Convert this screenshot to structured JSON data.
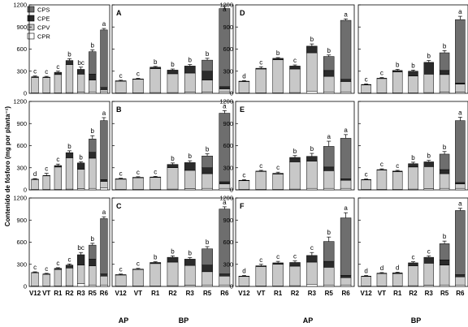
{
  "chart_data": {
    "type": "bar",
    "stacked": true,
    "ylabel": "Contenido de fósforo (mg por planta⁻¹)",
    "ylim": [
      0,
      1200
    ],
    "yticks": [
      0,
      300,
      600,
      900,
      1200
    ],
    "categories": [
      "V12",
      "VT",
      "R1",
      "R2",
      "R3",
      "R5",
      "R6"
    ],
    "group_labels": {
      "AP": "AP",
      "BP": "BP"
    },
    "legend": [
      {
        "key": "CPS",
        "label": "CPS",
        "color": "#6e6e6e"
      },
      {
        "key": "CPE",
        "label": "CPE",
        "color": "#2b2b2b"
      },
      {
        "key": "CPV",
        "label": "CPV",
        "color": "#c8c8c8"
      },
      {
        "key": "CPR",
        "label": "CPR",
        "color": "#ffffff"
      }
    ],
    "series_order": [
      "CPR",
      "CPV",
      "CPE",
      "CPS"
    ],
    "panels": [
      {
        "label": "",
        "group": "AP",
        "letters": [
          "c",
          "c",
          "c",
          "b",
          "bc",
          "b",
          "a"
        ],
        "totals": [
          225,
          220,
          285,
          445,
          325,
          565,
          860
        ],
        "CPR": [
          5,
          5,
          5,
          10,
          15,
          20,
          20
        ],
        "CPV": [
          210,
          210,
          250,
          380,
          245,
          160,
          30
        ],
        "CPE": [
          10,
          5,
          30,
          55,
          65,
          80,
          30
        ],
        "CPS": [
          0,
          0,
          0,
          0,
          0,
          305,
          780
        ],
        "err": [
          10,
          10,
          15,
          25,
          30,
          25,
          20
        ]
      },
      {
        "label": "A",
        "group": "BP",
        "letters": [
          "c",
          "c",
          "b",
          "b",
          "b",
          "b",
          "a"
        ],
        "totals": [
          170,
          195,
          355,
          315,
          370,
          450,
          1150
        ],
        "CPR": [
          5,
          5,
          10,
          10,
          15,
          15,
          20
        ],
        "CPV": [
          160,
          185,
          325,
          255,
          260,
          165,
          40
        ],
        "CPE": [
          5,
          5,
          20,
          50,
          95,
          120,
          30
        ],
        "CPS": [
          0,
          0,
          0,
          0,
          0,
          150,
          1060
        ],
        "err": [
          8,
          8,
          10,
          15,
          20,
          25,
          30
        ]
      },
      {
        "label": "D",
        "group": "AP",
        "letters": [
          "d",
          "c",
          "b",
          "c",
          "b",
          "b",
          "a"
        ],
        "totals": [
          165,
          340,
          475,
          370,
          640,
          500,
          990
        ],
        "CPR": [
          5,
          5,
          5,
          10,
          30,
          20,
          20
        ],
        "CPV": [
          155,
          325,
          450,
          320,
          520,
          210,
          140
        ],
        "CPE": [
          5,
          10,
          20,
          40,
          90,
          80,
          30
        ],
        "CPS": [
          0,
          0,
          0,
          0,
          0,
          190,
          800
        ],
        "err": [
          8,
          20,
          10,
          15,
          30,
          20,
          20
        ]
      },
      {
        "label": "",
        "group": "BP",
        "letters": [
          "c",
          "c",
          "b",
          "b",
          "b",
          "b",
          "a"
        ],
        "totals": [
          120,
          205,
          310,
          300,
          420,
          550,
          1000
        ],
        "CPR": [
          5,
          5,
          5,
          5,
          10,
          15,
          15
        ],
        "CPV": [
          110,
          195,
          285,
          230,
          250,
          240,
          110
        ],
        "CPE": [
          5,
          5,
          20,
          65,
          160,
          55,
          15
        ],
        "CPS": [
          0,
          0,
          0,
          0,
          0,
          240,
          860
        ],
        "err": [
          8,
          8,
          15,
          15,
          25,
          30,
          45
        ]
      },
      {
        "label": "",
        "group": "AP",
        "letters": [
          "d",
          "c",
          "c",
          "b",
          "b",
          "b",
          "a"
        ],
        "totals": [
          145,
          195,
          330,
          505,
          365,
          690,
          940
        ],
        "CPR": [
          5,
          5,
          5,
          10,
          15,
          20,
          25
        ],
        "CPV": [
          135,
          185,
          305,
          425,
          265,
          410,
          90
        ],
        "CPE": [
          5,
          5,
          20,
          70,
          85,
          80,
          25
        ],
        "CPS": [
          0,
          0,
          0,
          0,
          0,
          180,
          800
        ],
        "err": [
          8,
          30,
          20,
          25,
          15,
          45,
          40
        ]
      },
      {
        "label": "B",
        "group": "BP",
        "letters": [
          "c",
          "c",
          "c",
          "b",
          "b",
          "b",
          "a"
        ],
        "totals": [
          150,
          170,
          175,
          345,
          370,
          460,
          1040
        ],
        "CPR": [
          5,
          5,
          5,
          10,
          15,
          20,
          20
        ],
        "CPV": [
          140,
          160,
          165,
          290,
          250,
          200,
          60
        ],
        "CPE": [
          5,
          5,
          5,
          45,
          105,
          80,
          30
        ],
        "CPS": [
          0,
          0,
          0,
          0,
          0,
          160,
          930
        ],
        "err": [
          8,
          8,
          8,
          20,
          25,
          30,
          35
        ]
      },
      {
        "label": "E",
        "group": "AP",
        "letters": [
          "c",
          "c",
          "c",
          "b",
          "b",
          "a",
          "a"
        ],
        "totals": [
          130,
          255,
          225,
          440,
          455,
          590,
          700
        ],
        "CPR": [
          5,
          5,
          5,
          10,
          20,
          20,
          20
        ],
        "CPV": [
          120,
          245,
          210,
          370,
          370,
          240,
          110
        ],
        "CPE": [
          5,
          5,
          10,
          60,
          65,
          50,
          20
        ],
        "CPS": [
          0,
          0,
          0,
          0,
          0,
          280,
          550
        ],
        "err": [
          8,
          10,
          15,
          25,
          40,
          70,
          50
        ]
      },
      {
        "label": "",
        "group": "BP",
        "letters": [
          "c",
          "c",
          "c",
          "b",
          "b",
          "b",
          "a"
        ],
        "totals": [
          140,
          275,
          255,
          355,
          380,
          485,
          940
        ],
        "CPR": [
          5,
          5,
          5,
          10,
          15,
          20,
          20
        ],
        "CPV": [
          130,
          265,
          240,
          300,
          300,
          200,
          60
        ],
        "CPE": [
          5,
          5,
          10,
          45,
          65,
          55,
          20
        ],
        "CPS": [
          0,
          0,
          0,
          0,
          0,
          210,
          840
        ],
        "err": [
          8,
          10,
          10,
          20,
          20,
          35,
          45
        ]
      },
      {
        "label": "",
        "group": "AP",
        "letters": [
          "c",
          "c",
          "c",
          "c",
          "bc",
          "b",
          "a"
        ],
        "totals": [
          190,
          170,
          245,
          290,
          430,
          560,
          920
        ],
        "CPR": [
          5,
          5,
          5,
          10,
          40,
          20,
          20
        ],
        "CPV": [
          180,
          160,
          225,
          240,
          250,
          260,
          120
        ],
        "CPE": [
          5,
          5,
          15,
          40,
          140,
          90,
          30
        ],
        "CPS": [
          0,
          0,
          0,
          0,
          0,
          190,
          750
        ],
        "err": [
          8,
          8,
          10,
          15,
          30,
          25,
          25
        ]
      },
      {
        "label": "C",
        "group": "BP",
        "letters": [
          "c",
          "c",
          "b",
          "b",
          "b",
          "b",
          "a"
        ],
        "totals": [
          160,
          235,
          325,
          395,
          370,
          510,
          1050
        ],
        "CPR": [
          5,
          5,
          5,
          10,
          15,
          20,
          20
        ],
        "CPV": [
          150,
          225,
          305,
          320,
          270,
          180,
          120
        ],
        "CPE": [
          5,
          5,
          15,
          65,
          85,
          90,
          30
        ],
        "CPS": [
          0,
          0,
          0,
          0,
          0,
          220,
          880
        ],
        "err": [
          8,
          10,
          10,
          20,
          20,
          30,
          30
        ]
      },
      {
        "label": "F",
        "group": "AP",
        "letters": [
          "d",
          "c",
          "c",
          "c",
          "c",
          "b",
          "a"
        ],
        "totals": [
          140,
          280,
          320,
          325,
          420,
          610,
          930
        ],
        "CPR": [
          5,
          5,
          5,
          10,
          30,
          20,
          20
        ],
        "CPV": [
          130,
          265,
          295,
          265,
          300,
          240,
          100
        ],
        "CPE": [
          5,
          10,
          20,
          50,
          90,
          80,
          30
        ],
        "CPS": [
          0,
          0,
          0,
          0,
          0,
          270,
          780
        ],
        "err": [
          8,
          20,
          20,
          20,
          40,
          60,
          70
        ]
      },
      {
        "label": "",
        "group": "BP",
        "letters": [
          "d",
          "d",
          "d",
          "c",
          "c",
          "b",
          "a"
        ],
        "totals": [
          140,
          180,
          185,
          320,
          395,
          580,
          1030
        ],
        "CPR": [
          5,
          5,
          5,
          10,
          15,
          20,
          20
        ],
        "CPV": [
          130,
          170,
          170,
          270,
          300,
          270,
          110
        ],
        "CPE": [
          5,
          5,
          10,
          40,
          80,
          70,
          30
        ],
        "CPS": [
          0,
          0,
          0,
          0,
          0,
          220,
          870
        ],
        "err": [
          8,
          8,
          8,
          15,
          20,
          35,
          30
        ]
      }
    ]
  }
}
